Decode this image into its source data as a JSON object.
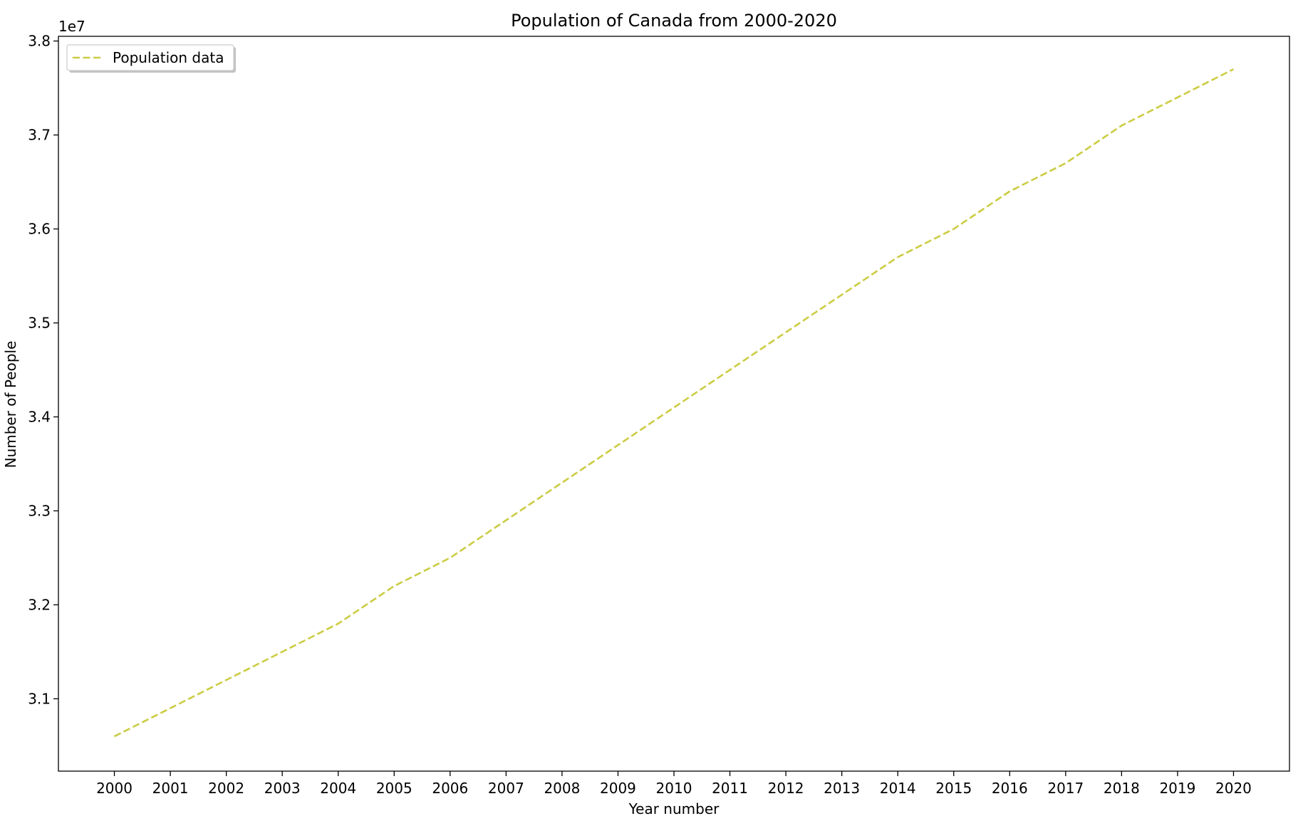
{
  "chart_data": {
    "type": "line",
    "title": "Population of Canada from 2000-2020",
    "xlabel": "Year number",
    "ylabel": "Number of People",
    "y_offset_label": "1e7",
    "x": [
      2000,
      2001,
      2002,
      2003,
      2004,
      2005,
      2006,
      2007,
      2008,
      2009,
      2010,
      2011,
      2012,
      2013,
      2014,
      2015,
      2016,
      2017,
      2018,
      2019,
      2020
    ],
    "x_tick_labels": [
      "2000",
      "2001",
      "2002",
      "2003",
      "2004",
      "2005",
      "2006",
      "2007",
      "2008",
      "2009",
      "2010",
      "2011",
      "2012",
      "2013",
      "2014",
      "2015",
      "2016",
      "2017",
      "2018",
      "2019",
      "2020"
    ],
    "y_ticks": [
      31000000,
      32000000,
      33000000,
      34000000,
      35000000,
      36000000,
      37000000,
      38000000
    ],
    "y_tick_labels": [
      "3.1",
      "3.2",
      "3.3",
      "3.4",
      "3.5",
      "3.6",
      "3.7",
      "3.8"
    ],
    "xlim": [
      1999,
      2021
    ],
    "ylim": [
      30230000,
      38050000
    ],
    "grid": false,
    "legend_position": "upper left",
    "series": [
      {
        "name": "Population data",
        "color": "#cccc44",
        "line_style": "dashed",
        "values": [
          30600000,
          30900000,
          31200000,
          31500000,
          31800000,
          32200000,
          32500000,
          32900000,
          33300000,
          33700000,
          34100000,
          34500000,
          34900000,
          35300000,
          35700000,
          36000000,
          36400000,
          36700000,
          37100000,
          37400000,
          37700000
        ]
      }
    ]
  }
}
